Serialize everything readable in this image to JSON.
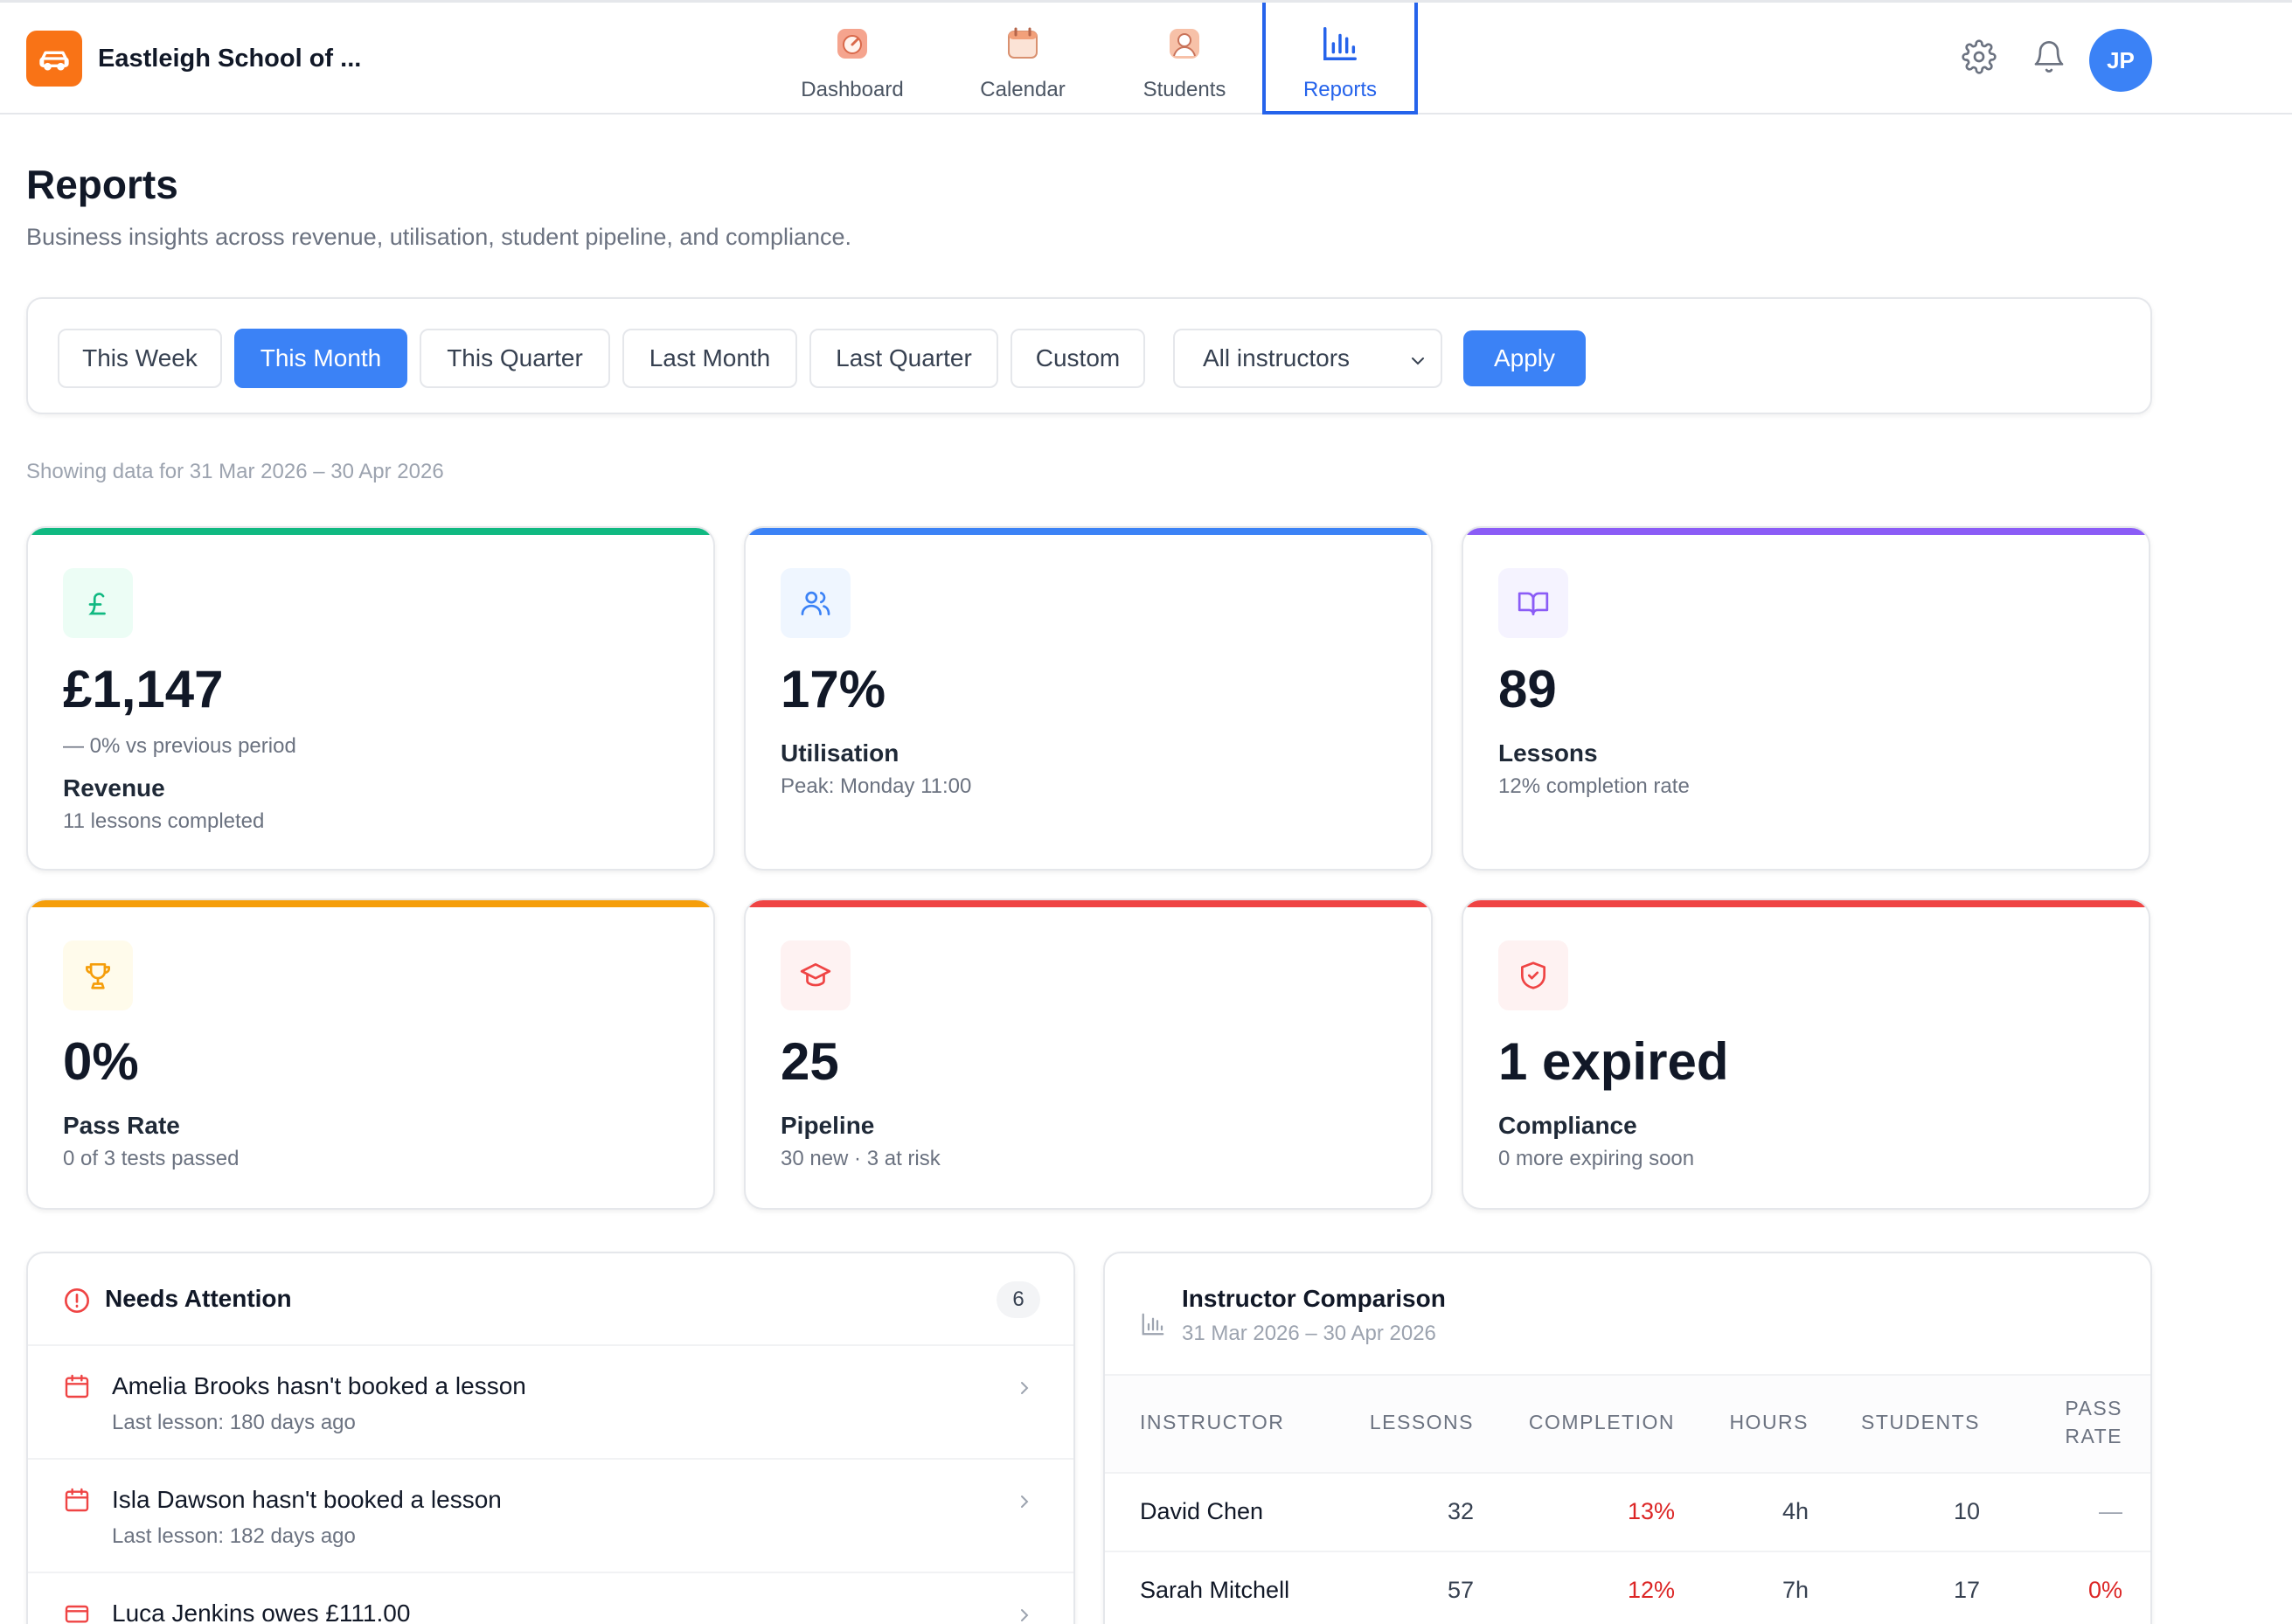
{
  "header": {
    "school_name": "Eastleigh School of ...",
    "nav": [
      {
        "label": "Dashboard",
        "icon": "gauge-icon"
      },
      {
        "label": "Calendar",
        "icon": "calendar-icon"
      },
      {
        "label": "Students",
        "icon": "student-icon"
      },
      {
        "label": "Reports",
        "icon": "bar-chart-icon",
        "active": true
      }
    ],
    "avatar_initials": "JP"
  },
  "page": {
    "title": "Reports",
    "subtitle": "Business insights across revenue, utilisation, student pipeline, and compliance."
  },
  "filters": {
    "periods": [
      "This Week",
      "This Month",
      "This Quarter",
      "Last Month",
      "Last Quarter",
      "Custom"
    ],
    "active_period": "This Month",
    "instructor_select": "All instructors",
    "apply_label": "Apply"
  },
  "range_note": "Showing data for 31 Mar 2026 – 30 Apr 2026",
  "kpis": {
    "revenue": {
      "value": "£1,147",
      "trend": "—  0% vs previous period",
      "label": "Revenue",
      "sub": "11 lessons completed",
      "icon": "pound-icon",
      "accent": "#10b981"
    },
    "utilisation": {
      "value": "17%",
      "label": "Utilisation",
      "sub": "Peak: Monday 11:00",
      "icon": "users-icon",
      "accent": "#3b82f6"
    },
    "lessons": {
      "value": "89",
      "label": "Lessons",
      "sub": "12% completion rate",
      "icon": "book-icon",
      "accent": "#8b5cf6"
    },
    "pass_rate": {
      "value": "0%",
      "label": "Pass Rate",
      "sub": "0 of 3 tests passed",
      "icon": "trophy-icon",
      "accent": "#f59e0b"
    },
    "pipeline": {
      "value": "25",
      "label": "Pipeline",
      "sub": "30 new · 3 at risk",
      "icon": "graduation-cap-icon",
      "accent": "#ef4444"
    },
    "compliance": {
      "value": "1 expired",
      "label": "Compliance",
      "sub": "0 more expiring soon",
      "icon": "shield-check-icon",
      "accent": "#ef4444"
    }
  },
  "attention": {
    "title": "Needs Attention",
    "count": "6",
    "items": [
      {
        "title": "Amelia Brooks hasn't booked a lesson",
        "sub": "Last lesson: 180 days ago",
        "icon": "calendar-icon"
      },
      {
        "title": "Isla Dawson hasn't booked a lesson",
        "sub": "Last lesson: 182 days ago",
        "icon": "calendar-icon"
      },
      {
        "title": "Luca Jenkins owes £111.00",
        "sub": "",
        "icon": "card-icon"
      }
    ]
  },
  "comparison": {
    "title": "Instructor Comparison",
    "range": "31 Mar 2026 – 30 Apr 2026",
    "columns": [
      "Instructor",
      "Lessons",
      "Completion",
      "Hours",
      "Students",
      "Pass",
      "Rate"
    ],
    "rows": [
      {
        "name": "David Chen",
        "lessons": "32",
        "completion": "13%",
        "hours": "4h",
        "students": "10",
        "pass_rate": "—"
      },
      {
        "name": "Sarah Mitchell",
        "lessons": "57",
        "completion": "12%",
        "hours": "7h",
        "students": "17",
        "pass_rate": "0%"
      }
    ]
  },
  "colors": {
    "primary": "#3b82f6",
    "brand": "#f97316",
    "danger": "#dc2626"
  }
}
